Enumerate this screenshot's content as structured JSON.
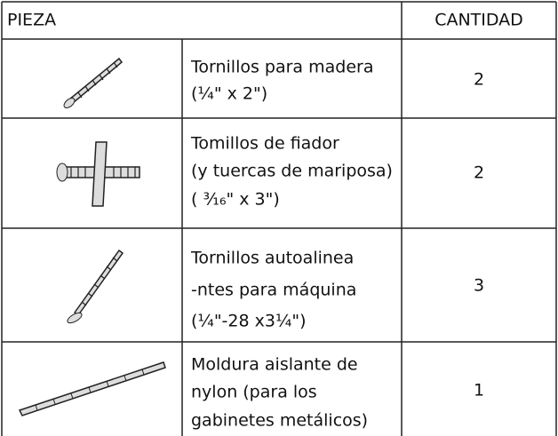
{
  "table": {
    "header": [
      "PIEZA",
      "CANTIDAD"
    ],
    "rows": [
      {
        "description": [
          "Tornillos para madera",
          "(¹⁄₄\"  x  2\")"
        ],
        "quantity": 2
      },
      {
        "description": [
          "Tomillos de fiador",
          "(y tuercas de mariposa)",
          "( ³⁄₁₆\" x 3\")"
        ],
        "quantity": 2
      },
      {
        "description": [
          "Tornillos autoalinea",
          "-ntes para máquina",
          "(¹⁄₄\"-28 x3¹⁄₄\")"
        ],
        "quantity": 3
      },
      {
        "description": [
          "Moldura aislante de",
          "nylon (para los",
          "gabinetes metálicos)"
        ],
        "quantity": 1
      }
    ]
  }
}
